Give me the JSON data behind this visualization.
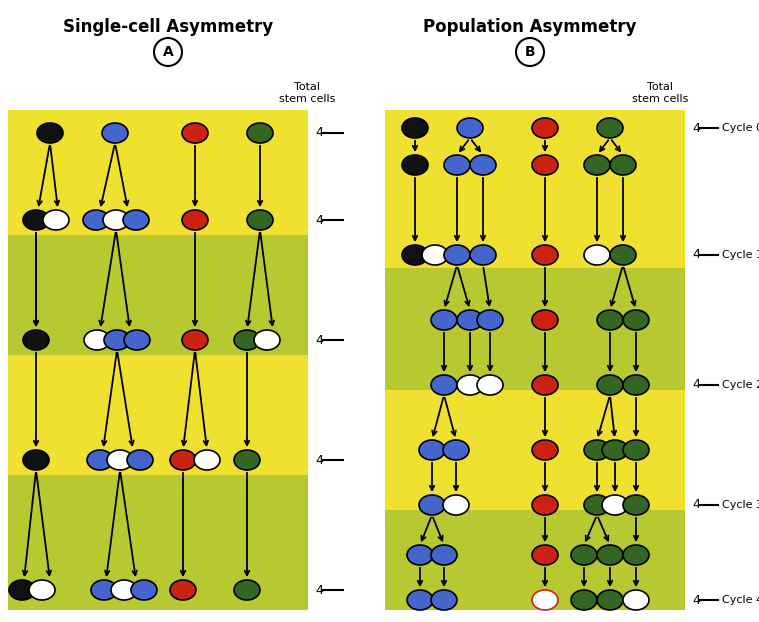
{
  "title_left": "Single-cell Asymmetry",
  "title_right": "Population Asymmetry",
  "label_A": "A",
  "label_B": "B",
  "colors": {
    "black": "#111111",
    "white": "#ffffff",
    "blue": "#4466cc",
    "red": "#cc2211",
    "green": "#336622",
    "yellow_bg": "#f0e030",
    "olive_bg": "#b8c830",
    "outline": "#000000"
  },
  "figure_width": 7.59,
  "figure_height": 6.22,
  "dpi": 100
}
